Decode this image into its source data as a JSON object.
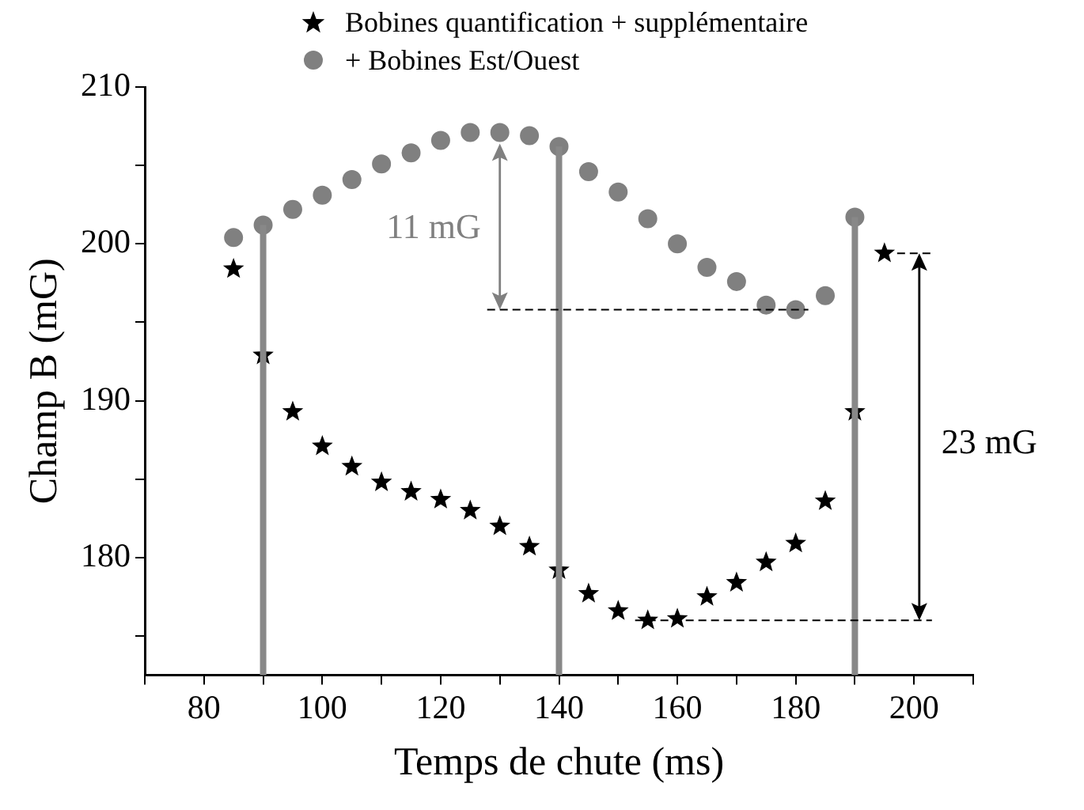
{
  "chart_data": {
    "type": "scatter",
    "xlabel": "Temps de chute (ms)",
    "ylabel": "Champ B (mG)",
    "xlim": [
      70,
      210
    ],
    "xticks": [
      {
        "value": 70,
        "label": null
      },
      80,
      {
        "value": 90,
        "label": null
      },
      100,
      {
        "value": 110,
        "label": null
      },
      120,
      {
        "value": 130,
        "label": null
      },
      140,
      {
        "value": 150,
        "label": null
      },
      160,
      {
        "value": 170,
        "label": null
      },
      180,
      {
        "value": 190,
        "label": null
      },
      200,
      {
        "value": 210,
        "label": null
      }
    ],
    "ylim": [
      172.5,
      210
    ],
    "yticks": [
      {
        "value": 175,
        "label": null
      },
      180,
      {
        "value": 185,
        "label": null
      },
      190,
      {
        "value": 195,
        "label": null
      },
      200,
      {
        "value": 205,
        "label": null
      },
      210
    ],
    "grid": false,
    "legend": "top",
    "series": [
      {
        "name": "Bobines quantification + supplémentaire",
        "color": "#000000",
        "marker": "star",
        "x": [
          85,
          90,
          95,
          100,
          105,
          110,
          115,
          120,
          125,
          130,
          135,
          140,
          145,
          150,
          155,
          160,
          165,
          170,
          175,
          180,
          185,
          190,
          195
        ],
        "values": [
          198.4,
          192.9,
          189.3,
          187.1,
          185.8,
          184.8,
          184.2,
          183.7,
          183.0,
          182.0,
          180.7,
          179.2,
          177.7,
          176.6,
          176.0,
          176.1,
          177.5,
          178.4,
          179.7,
          180.9,
          183.6,
          189.3,
          199.4
        ]
      },
      {
        "name": "+ Bobines Est/Ouest",
        "color": "#808080",
        "marker": "circle",
        "x": [
          85,
          90,
          95,
          100,
          105,
          110,
          115,
          120,
          125,
          130,
          135,
          140,
          145,
          150,
          155,
          160,
          165,
          170,
          175,
          180,
          185,
          190
        ],
        "values": [
          200.4,
          201.2,
          202.2,
          203.1,
          204.1,
          205.1,
          205.8,
          206.6,
          207.1,
          207.1,
          206.9,
          206.2,
          204.6,
          203.3,
          201.6,
          200.0,
          198.5,
          197.6,
          196.1,
          195.8,
          196.7,
          201.7
        ]
      }
    ],
    "ref_lines": [
      {
        "axis": "x",
        "value": 90,
        "color": "#888888"
      },
      {
        "axis": "x",
        "value": 140,
        "color": "#888888"
      },
      {
        "axis": "x",
        "value": 190,
        "color": "#888888"
      }
    ],
    "annotations": [
      "11 mG",
      "23 mG"
    ]
  }
}
